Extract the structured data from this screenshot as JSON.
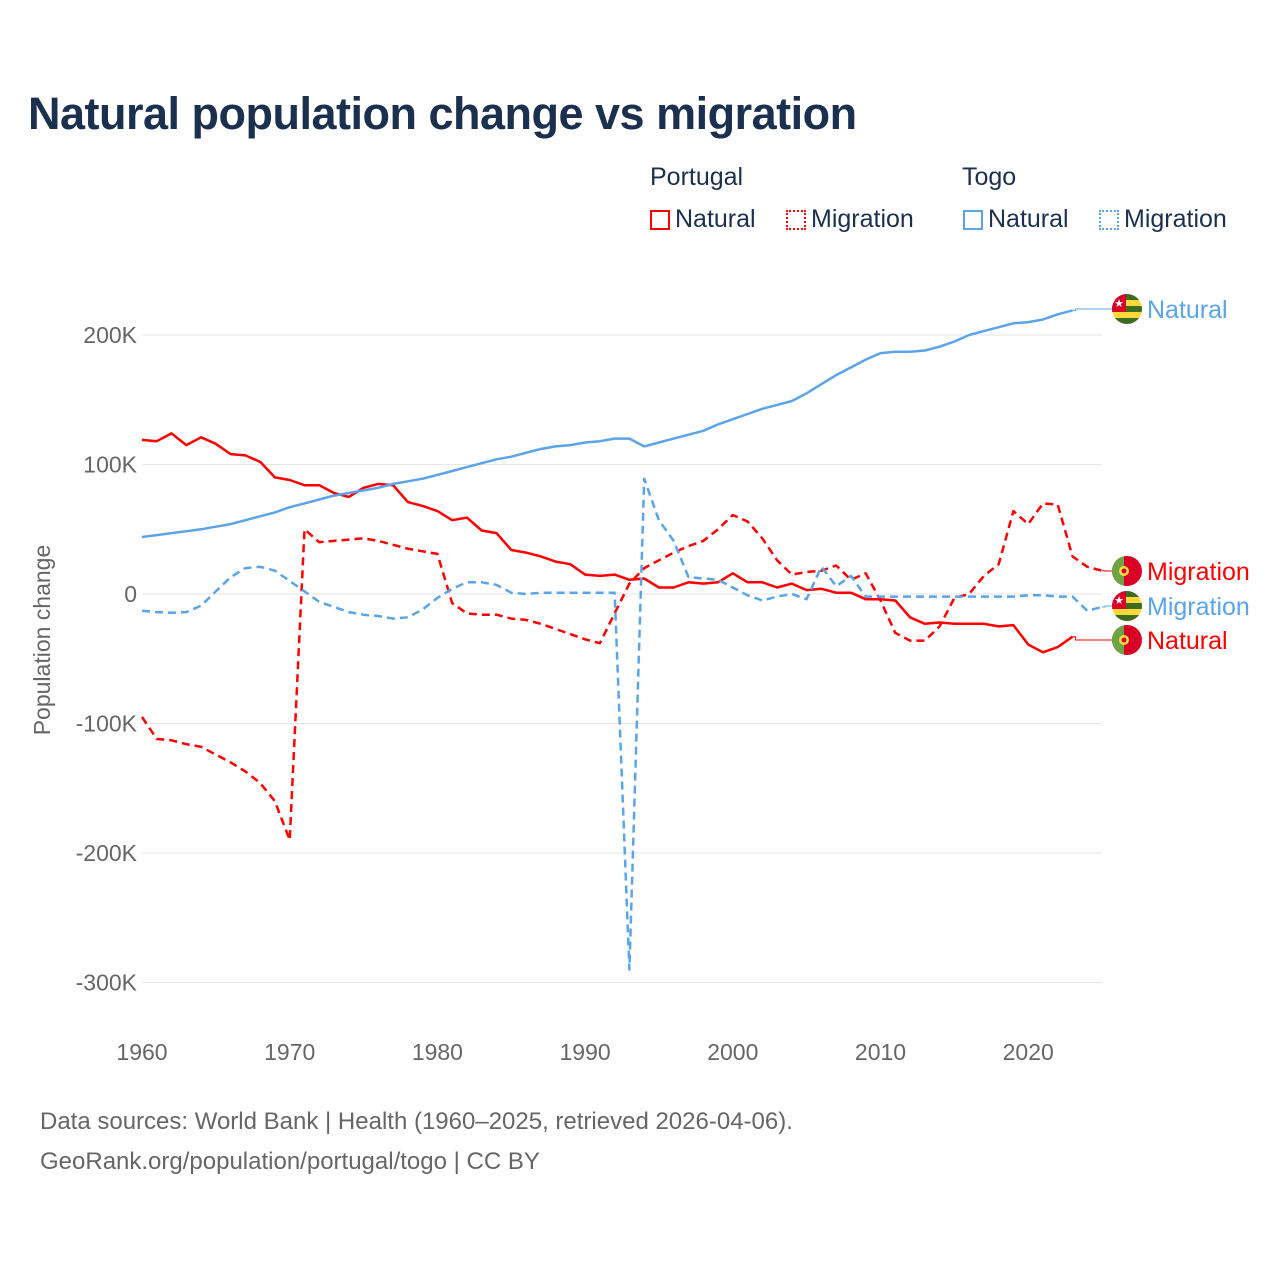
{
  "title": "Natural population change vs migration",
  "legend": {
    "groups": [
      {
        "name": "Portugal",
        "items": [
          {
            "label": "Natural",
            "style": "solid"
          },
          {
            "label": "Migration",
            "style": "dotted"
          }
        ],
        "color": "#ff0000"
      },
      {
        "name": "Togo",
        "items": [
          {
            "label": "Natural",
            "style": "solid"
          },
          {
            "label": "Migration",
            "style": "dotted"
          }
        ],
        "color": "#5ba4ea"
      }
    ]
  },
  "footer": {
    "line1": "Data sources: World Bank | Health (1960–2025, retrieved 2026-04-06).",
    "line2": "GeoRank.org/population/portugal/togo | CC BY"
  },
  "chart_data": {
    "type": "line",
    "title": "Natural population change vs migration",
    "xlabel": "",
    "ylabel": "Population change",
    "xlim": [
      1960,
      2025
    ],
    "ylim": [
      -300000,
      220000
    ],
    "x_ticks": [
      1960,
      1970,
      1980,
      1990,
      2000,
      2010,
      2020
    ],
    "x_tick_labels": [
      "1960",
      "1970",
      "1980",
      "1990",
      "2000",
      "2010",
      "2020"
    ],
    "y_ticks": [
      200000,
      100000,
      0,
      -100000,
      -200000,
      -300000
    ],
    "y_tick_labels": [
      "200K",
      "100K",
      "0",
      "-100K",
      "-200K",
      "-300K"
    ],
    "grid": true,
    "legend_position": "top-right",
    "units": "thousands",
    "series": [
      {
        "name": "Portugal Natural",
        "country": "Portugal",
        "end_label": "Natural",
        "color": "#ff0000",
        "dash": "solid",
        "start": 1960,
        "values": [
          119,
          118,
          124,
          115,
          121,
          116,
          108,
          107,
          102,
          90,
          88,
          84,
          84,
          78,
          75,
          82,
          85,
          84,
          71,
          68,
          64,
          57,
          59,
          49,
          47,
          34,
          32,
          29,
          25,
          23,
          15,
          14,
          15,
          11,
          12,
          5,
          5,
          9,
          8,
          9,
          16,
          9,
          9,
          5,
          8,
          3,
          4,
          1,
          1,
          -4,
          -4,
          -5,
          -18,
          -23,
          -22,
          -23,
          -23,
          -23,
          -25,
          -24,
          -39,
          -45,
          -41,
          -33
        ]
      },
      {
        "name": "Portugal Migration",
        "country": "Portugal",
        "end_label": "Migration",
        "color": "#ff0000",
        "dash": "dashed",
        "start": 1960,
        "values": [
          -95,
          -112,
          -113,
          -116,
          -118,
          -124,
          -130,
          -137,
          -146,
          -160,
          -190,
          50,
          40,
          41,
          42,
          43,
          41,
          38,
          35,
          33,
          31,
          -7,
          -15,
          -16,
          -16,
          -19,
          -20,
          -23,
          -27,
          -31,
          -35,
          -38,
          -15,
          8,
          20,
          26,
          32,
          37,
          41,
          50,
          61,
          56,
          43,
          26,
          15,
          17,
          18,
          22,
          11,
          16,
          -5,
          -30,
          -36,
          -36,
          -25,
          -3,
          0,
          14,
          23,
          64,
          54,
          70,
          69,
          29,
          21,
          18
        ]
      },
      {
        "name": "Togo Natural",
        "country": "Togo",
        "end_label": "Natural",
        "color": "#5ba4ea",
        "dash": "solid",
        "start": 1960,
        "values": [
          44,
          45.5,
          47,
          48.5,
          50,
          52,
          54,
          57,
          60,
          63,
          67,
          70,
          73,
          76,
          78,
          80,
          82,
          85,
          87,
          89,
          92,
          95,
          98,
          101,
          104,
          106,
          109,
          112,
          114,
          115,
          117,
          118,
          120,
          120,
          114,
          117,
          120,
          123,
          126,
          131,
          135,
          139,
          143,
          146,
          149,
          155,
          162,
          169,
          175,
          181,
          186,
          187,
          187,
          188,
          191,
          195,
          200,
          203,
          206,
          209,
          210,
          212,
          216,
          219
        ]
      },
      {
        "name": "Togo Migration",
        "country": "Togo",
        "end_label": "Migration",
        "color": "#5ba4ea",
        "dash": "dashed",
        "start": 1960,
        "values": [
          -13,
          -14,
          -14.5,
          -14,
          -9,
          2,
          13,
          20,
          21,
          18,
          10,
          2,
          -6,
          -10,
          -14,
          -16,
          -17,
          -19,
          -18,
          -12,
          -3,
          4,
          9,
          9,
          7,
          1,
          0,
          1,
          1,
          1,
          1,
          1,
          1,
          -290,
          89,
          57,
          41,
          13,
          12,
          11,
          5,
          -1,
          -5,
          -2,
          0,
          -4,
          21,
          6,
          14,
          -2,
          -2,
          -2,
          -2,
          -2,
          -2,
          -2,
          -2,
          -2,
          -2,
          -2,
          -1,
          -1,
          -2,
          -2,
          -13,
          -10
        ]
      }
    ],
    "end_labels_order": [
      "Togo Natural",
      "Portugal Migration",
      "Togo Migration",
      "Portugal Natural"
    ]
  }
}
